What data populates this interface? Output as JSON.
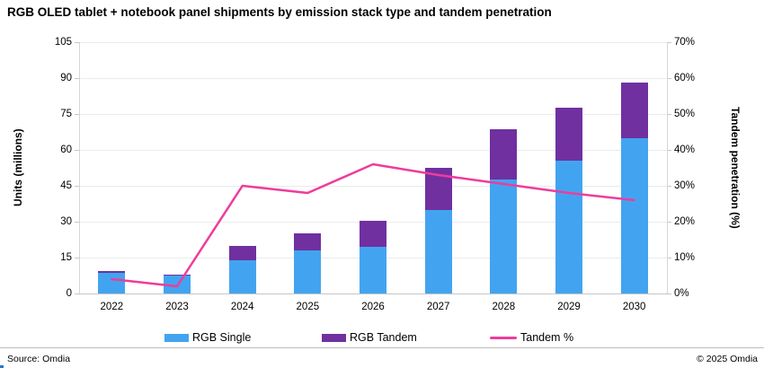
{
  "title": "RGB OLED tablet + notebook panel shipments by emission stack type and tandem penetration",
  "chart_data": {
    "type": "bar",
    "subtype": "stacked-bar-with-line",
    "categories": [
      "2022",
      "2023",
      "2024",
      "2025",
      "2026",
      "2027",
      "2028",
      "2029",
      "2030"
    ],
    "series": [
      {
        "name": "RGB Single",
        "type": "bar",
        "axis": "left",
        "color": "#42a4f0",
        "values": [
          8.8,
          7.8,
          14,
          18,
          19.5,
          35,
          47.5,
          55.5,
          65
        ]
      },
      {
        "name": "RGB Tandem",
        "type": "bar",
        "axis": "left",
        "color": "#7030a0",
        "values": [
          0.4,
          0.2,
          6,
          7,
          11,
          17.5,
          21,
          22,
          23
        ]
      },
      {
        "name": "Tandem %",
        "type": "line",
        "axis": "right",
        "color": "#ee3c9c",
        "values": [
          4,
          2,
          30,
          28,
          36,
          33,
          30.5,
          28,
          26
        ]
      }
    ],
    "left_axis": {
      "label": "Units (millions)",
      "min": 0,
      "max": 105,
      "step": 15
    },
    "right_axis": {
      "label": "Tandem penetration (%)",
      "min": 0,
      "max": 70,
      "step": 10,
      "suffix": "%"
    },
    "grid": true,
    "legend_position": "bottom"
  },
  "footer": {
    "source": "Source: Omdia",
    "copyright": "© 2025 Omdia"
  }
}
